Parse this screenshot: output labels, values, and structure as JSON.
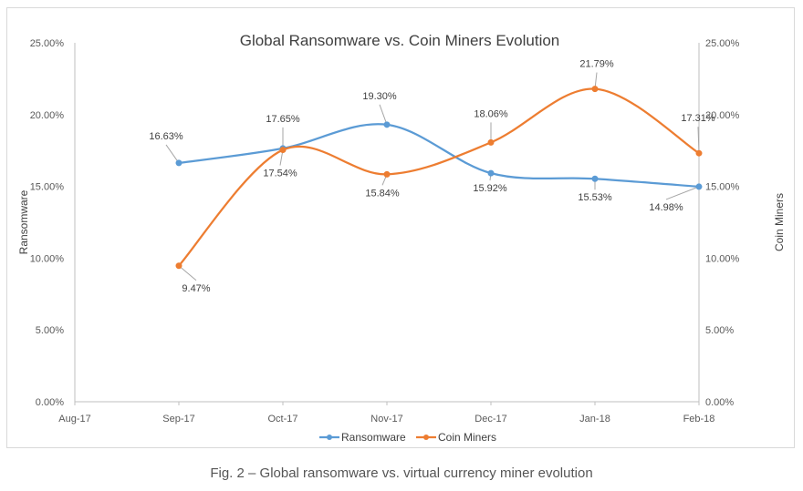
{
  "caption": "Fig. 2 – Global ransomware vs. virtual currency miner evolution",
  "chart_data": {
    "type": "line",
    "title": "Global Ransomware vs. Coin Miners Evolution",
    "ylabel": "Ransomware",
    "y2label": "Coin Miners",
    "categories": [
      "Aug-17",
      "Sep-17",
      "Oct-17",
      "Nov-17",
      "Dec-17",
      "Jan-18",
      "Feb-18"
    ],
    "ylim": [
      0,
      25
    ],
    "yticks": [
      "0.00%",
      "5.00%",
      "10.00%",
      "15.00%",
      "20.00%",
      "25.00%"
    ],
    "legend_position": "bottom",
    "grid": false,
    "series": [
      {
        "name": "Ransomware",
        "color": "#5b9bd5",
        "values": [
          null,
          16.63,
          17.65,
          19.3,
          15.92,
          15.53,
          14.98
        ],
        "labels": [
          "",
          "16.63%",
          "17.65%",
          "19.30%",
          "15.92%",
          "15.53%",
          "14.98%"
        ]
      },
      {
        "name": "Coin Miners",
        "color": "#ed7d31",
        "values": [
          null,
          9.47,
          17.54,
          15.84,
          18.06,
          21.79,
          17.31
        ],
        "labels": [
          "",
          "9.47%",
          "17.54%",
          "15.84%",
          "18.06%",
          "21.79%",
          "17.31%"
        ]
      }
    ]
  }
}
